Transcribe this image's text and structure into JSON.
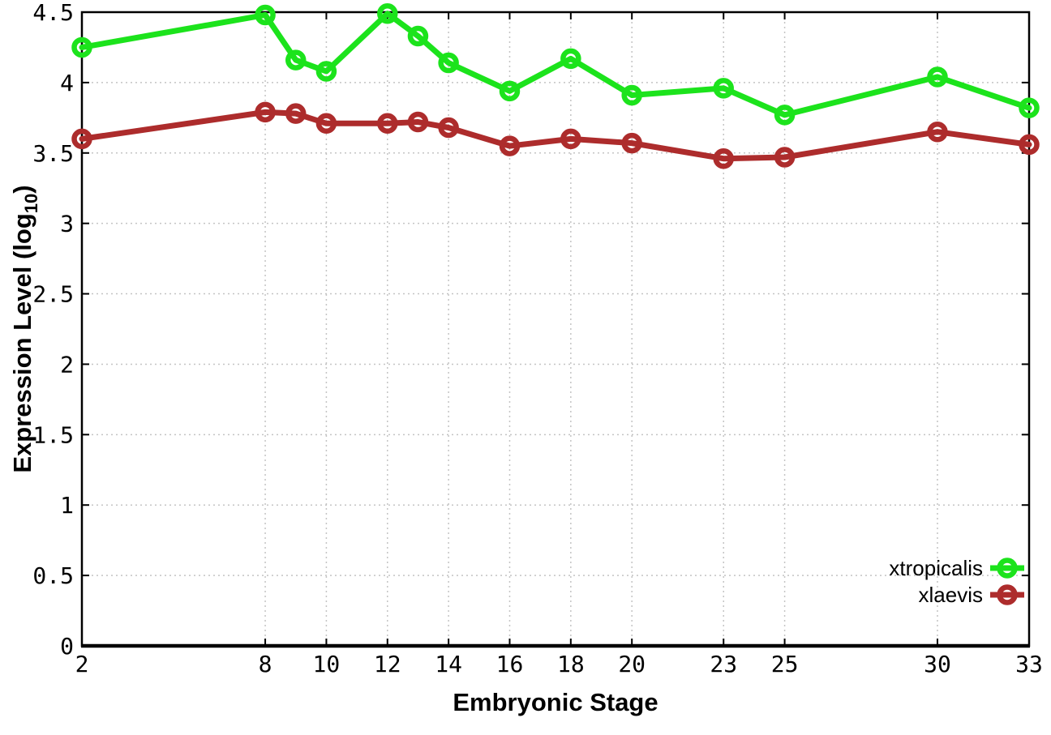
{
  "figure": {
    "background": "#ffffff",
    "axis_color": "#000000",
    "grid_color": "#c4c4c4"
  },
  "chart_data": {
    "type": "line",
    "title": "",
    "xlabel": "Embryonic Stage",
    "ylabel": "Expression Level (log10)",
    "ylabel_parts": {
      "main": "Expression Level (log",
      "sub": "10",
      "close": ")"
    },
    "x": [
      2,
      8,
      9,
      10,
      12,
      13,
      14,
      16,
      18,
      20,
      23,
      25,
      30,
      33
    ],
    "series": [
      {
        "name": "xtropicalis",
        "color": "#1ce31c",
        "values": [
          4.25,
          4.48,
          4.16,
          4.08,
          4.49,
          4.33,
          4.14,
          3.94,
          4.17,
          3.91,
          3.96,
          3.77,
          4.04,
          3.82
        ]
      },
      {
        "name": "xlaevis",
        "color": "#ad2c2c",
        "values": [
          3.6,
          3.79,
          3.78,
          3.71,
          3.71,
          3.72,
          3.68,
          3.55,
          3.6,
          3.57,
          3.46,
          3.47,
          3.65,
          3.56
        ]
      }
    ],
    "xticks": [
      2,
      8,
      10,
      12,
      14,
      16,
      18,
      20,
      23,
      25,
      30,
      33
    ],
    "yticks": [
      0,
      0.5,
      1,
      1.5,
      2,
      2.5,
      3,
      3.5,
      4,
      4.5
    ],
    "xlim": [
      2,
      33
    ],
    "ylim": [
      0,
      4.5
    ],
    "grid": true,
    "legend_position": "bottom-right",
    "marker": "open-circle",
    "line_width": 7,
    "marker_radius": 9.5,
    "marker_stroke": 6.5
  }
}
